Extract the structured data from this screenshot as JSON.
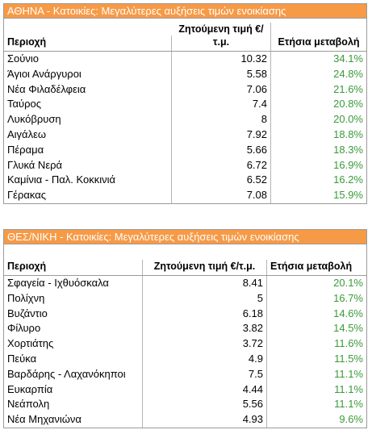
{
  "athens": {
    "title": "ΑΘΗΝΑ - Κατοικίες: Μεγαλύτερες αυξήσεις τιμών ενοικίασης",
    "headers": [
      "Περιοχή",
      "Ζητούμενη τιμή €/τ.μ.",
      "Ετήσια μεταβολή"
    ],
    "rows": [
      [
        "Σούνιο",
        "10.32",
        "34.1%"
      ],
      [
        "Άγιοι Ανάργυροι",
        "5.58",
        "24.8%"
      ],
      [
        "Νέα Φιλαδέλφεια",
        "7.06",
        "21.6%"
      ],
      [
        "Ταύρος",
        "7.4",
        "20.8%"
      ],
      [
        "Λυκόβρυση",
        "8",
        "20.0%"
      ],
      [
        "Αιγάλεω",
        "7.92",
        "18.8%"
      ],
      [
        "Πέραμα",
        "5.66",
        "18.3%"
      ],
      [
        "Γλυκά Νερά",
        "6.72",
        "16.9%"
      ],
      [
        "Καμίνια - Παλ. Κοκκινιά",
        "6.52",
        "16.2%"
      ],
      [
        "Γέρακας",
        "7.08",
        "15.9%"
      ]
    ]
  },
  "thessaloniki": {
    "title": "ΘΕΣ/ΝΙΚΗ - Κατοικίες: Μεγαλύτερες αυξήσεις τιμών ενοικίασης",
    "headers": [
      "Περιοχή",
      "Ζητούμενη τιμή €/τ.μ.",
      "Ετήσια μεταβολή"
    ],
    "rows": [
      [
        "Σφαγεία - Ιχθυόσκαλα",
        "8.41",
        "20.1%"
      ],
      [
        "Πολίχνη",
        "5",
        "16.7%"
      ],
      [
        "Βυζάντιο",
        "6.18",
        "14.6%"
      ],
      [
        "Φίλυρο",
        "3.82",
        "14.5%"
      ],
      [
        "Χορτιάτης",
        "3.72",
        "11.6%"
      ],
      [
        "Πεύκα",
        "4.9",
        "11.5%"
      ],
      [
        "Βαρδάρης - Λαχανόκηποι",
        "7.5",
        "11.1%"
      ],
      [
        "Ευκαρπία",
        "4.44",
        "11.1%"
      ],
      [
        "Νεάπολη",
        "5.56",
        "11.1%"
      ],
      [
        "Νέα Μηχανιώνα",
        "4.93",
        "9.6%"
      ]
    ]
  },
  "colors": {
    "title_bg": "#f79a46",
    "change_text": "#3a9a3a",
    "border": "#9a9a9a"
  }
}
